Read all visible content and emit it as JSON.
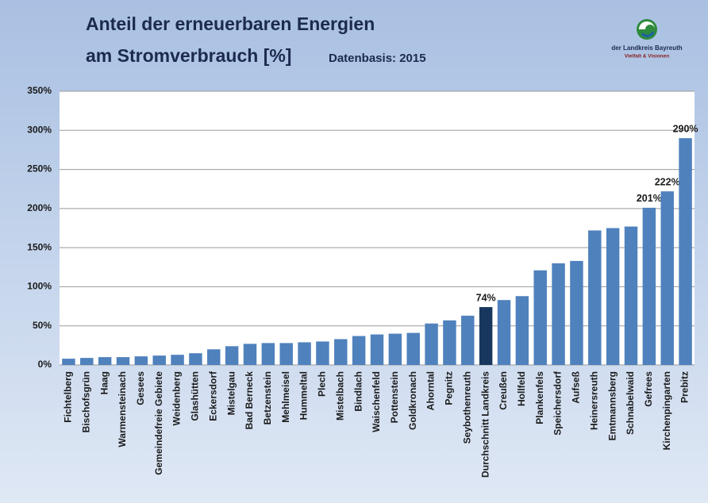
{
  "chart_data": {
    "type": "bar",
    "title": "Anteil der erneuerbaren Energien",
    "title_line2": "am Stromverbrauch [%]",
    "subtitle": "Datenbasis: 2015",
    "logo_text": "der Landkreis Bayreuth",
    "logo_tagline": "Vielfalt & Visionen",
    "categories": [
      "Fichtelberg",
      "Bischofsgrün",
      "Haag",
      "Warmensteinach",
      "Gesees",
      "Gemeindefreie Gebiete",
      "Weidenberg",
      "Glashütten",
      "Eckersdorf",
      "Mistelgau",
      "Bad Berneck",
      "Betzenstein",
      "Mehlmeisel",
      "Hummeltal",
      "Plech",
      "Mistelbach",
      "Bindlach",
      "Waischenfeld",
      "Pottenstein",
      "Goldkronach",
      "Ahorntal",
      "Pegnitz",
      "Seybothenreuth",
      "Durchschnitt Landkreis",
      "Creußen",
      "Hollfeld",
      "Plankenfels",
      "Speichersdorf",
      "Aufseß",
      "Heinersreuth",
      "Emtmannsberg",
      "Schnabelwaid",
      "Gefrees",
      "Kirchenpingarten",
      "Prebitz"
    ],
    "values": [
      8,
      9,
      10,
      10,
      11,
      12,
      13,
      15,
      20,
      24,
      27,
      28,
      28,
      29,
      30,
      33,
      37,
      39,
      40,
      41,
      53,
      57,
      63,
      74,
      83,
      88,
      121,
      130,
      133,
      172,
      175,
      177,
      201,
      222,
      290
    ],
    "value_labels": [
      null,
      null,
      null,
      null,
      null,
      null,
      null,
      null,
      null,
      null,
      null,
      null,
      null,
      null,
      null,
      null,
      null,
      null,
      null,
      null,
      null,
      null,
      null,
      "74%",
      null,
      null,
      null,
      null,
      null,
      null,
      null,
      null,
      "201%",
      "222%",
      "290%"
    ],
    "colors": [
      "#4f81bd",
      "#4f81bd",
      "#4f81bd",
      "#4f81bd",
      "#4f81bd",
      "#4f81bd",
      "#4f81bd",
      "#4f81bd",
      "#4f81bd",
      "#4f81bd",
      "#4f81bd",
      "#4f81bd",
      "#4f81bd",
      "#4f81bd",
      "#4f81bd",
      "#4f81bd",
      "#4f81bd",
      "#4f81bd",
      "#4f81bd",
      "#4f81bd",
      "#4f81bd",
      "#4f81bd",
      "#4f81bd",
      "#17375e",
      "#4f81bd",
      "#4f81bd",
      "#4f81bd",
      "#4f81bd",
      "#4f81bd",
      "#4f81bd",
      "#4f81bd",
      "#4f81bd",
      "#4f81bd",
      "#4f81bd",
      "#4f81bd"
    ],
    "ylim": [
      0,
      350
    ],
    "yticks": [
      {
        "value": 0,
        "label": "0%"
      },
      {
        "value": 50,
        "label": "50%"
      },
      {
        "value": 100,
        "label": "100%"
      },
      {
        "value": 150,
        "label": "150%"
      },
      {
        "value": 200,
        "label": "200%"
      },
      {
        "value": 250,
        "label": "250%"
      },
      {
        "value": 300,
        "label": "300%"
      },
      {
        "value": 350,
        "label": "350%"
      }
    ],
    "grid": true
  }
}
